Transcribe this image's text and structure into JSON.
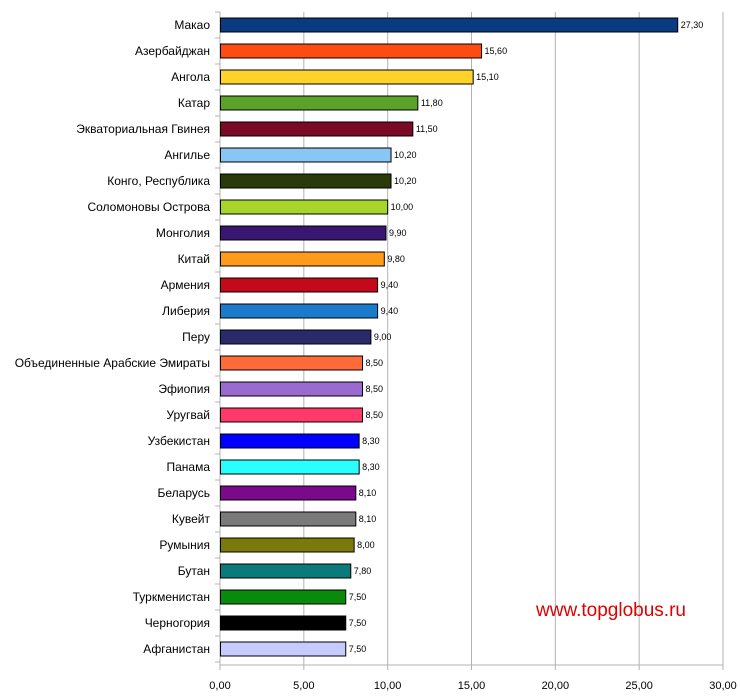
{
  "chart_data": {
    "type": "bar",
    "orientation": "horizontal",
    "categories": [
      "Макао",
      "Азербайджан",
      "Ангола",
      "Катар",
      "Экваториальная Гвинея",
      "Ангилье",
      "Конго, Республика",
      "Соломоновы Острова",
      "Монголия",
      "Китай",
      "Армения",
      "Либерия",
      "Перу",
      "Объединенные Арабские Эмираты",
      "Эфиопия",
      "Уругвай",
      "Узбекистан",
      "Панама",
      "Беларусь",
      "Кувейт",
      "Румыния",
      "Бутан",
      "Туркменистан",
      "Черногория",
      "Афганистан"
    ],
    "values": [
      27.3,
      15.6,
      15.1,
      11.8,
      11.5,
      10.2,
      10.2,
      10.0,
      9.9,
      9.8,
      9.4,
      9.4,
      9.0,
      8.5,
      8.5,
      8.5,
      8.3,
      8.3,
      8.1,
      8.1,
      8.0,
      7.8,
      7.5,
      7.5,
      7.5
    ],
    "value_labels": [
      "27,30",
      "15,60",
      "15,10",
      "11,80",
      "11,50",
      "10,20",
      "10,20",
      "10,00",
      "9,90",
      "9,80",
      "9,40",
      "9,40",
      "9,00",
      "8,50",
      "8,50",
      "8,50",
      "8,30",
      "8,30",
      "8,10",
      "8,10",
      "8,00",
      "7,80",
      "7,50",
      "7,50",
      "7,50"
    ],
    "colors": [
      "#0a3a80",
      "#ff4a12",
      "#ffd32a",
      "#5aa22a",
      "#7a0a25",
      "#87c6f5",
      "#2a3a0a",
      "#a8d52a",
      "#3a1670",
      "#ff9a1a",
      "#c40a1a",
      "#1a7acc",
      "#2a2a6a",
      "#ff6a3a",
      "#9a6ad0",
      "#ff3a6a",
      "#0000ff",
      "#2affff",
      "#7a0a8a",
      "#7a7a7a",
      "#7a7a0a",
      "#0a7a7a",
      "#0a8a0a",
      "#000000",
      "#c6caff"
    ],
    "xlim": [
      0,
      30
    ],
    "x_ticks": [
      0,
      5,
      10,
      15,
      20,
      25,
      30
    ],
    "x_tick_labels": [
      "0,00",
      "5,00",
      "10,00",
      "15,00",
      "20,00",
      "25,00",
      "30,00"
    ],
    "grid": "vertical",
    "title": "",
    "xlabel": "",
    "ylabel": ""
  },
  "watermark": "www.topglobus.ru"
}
